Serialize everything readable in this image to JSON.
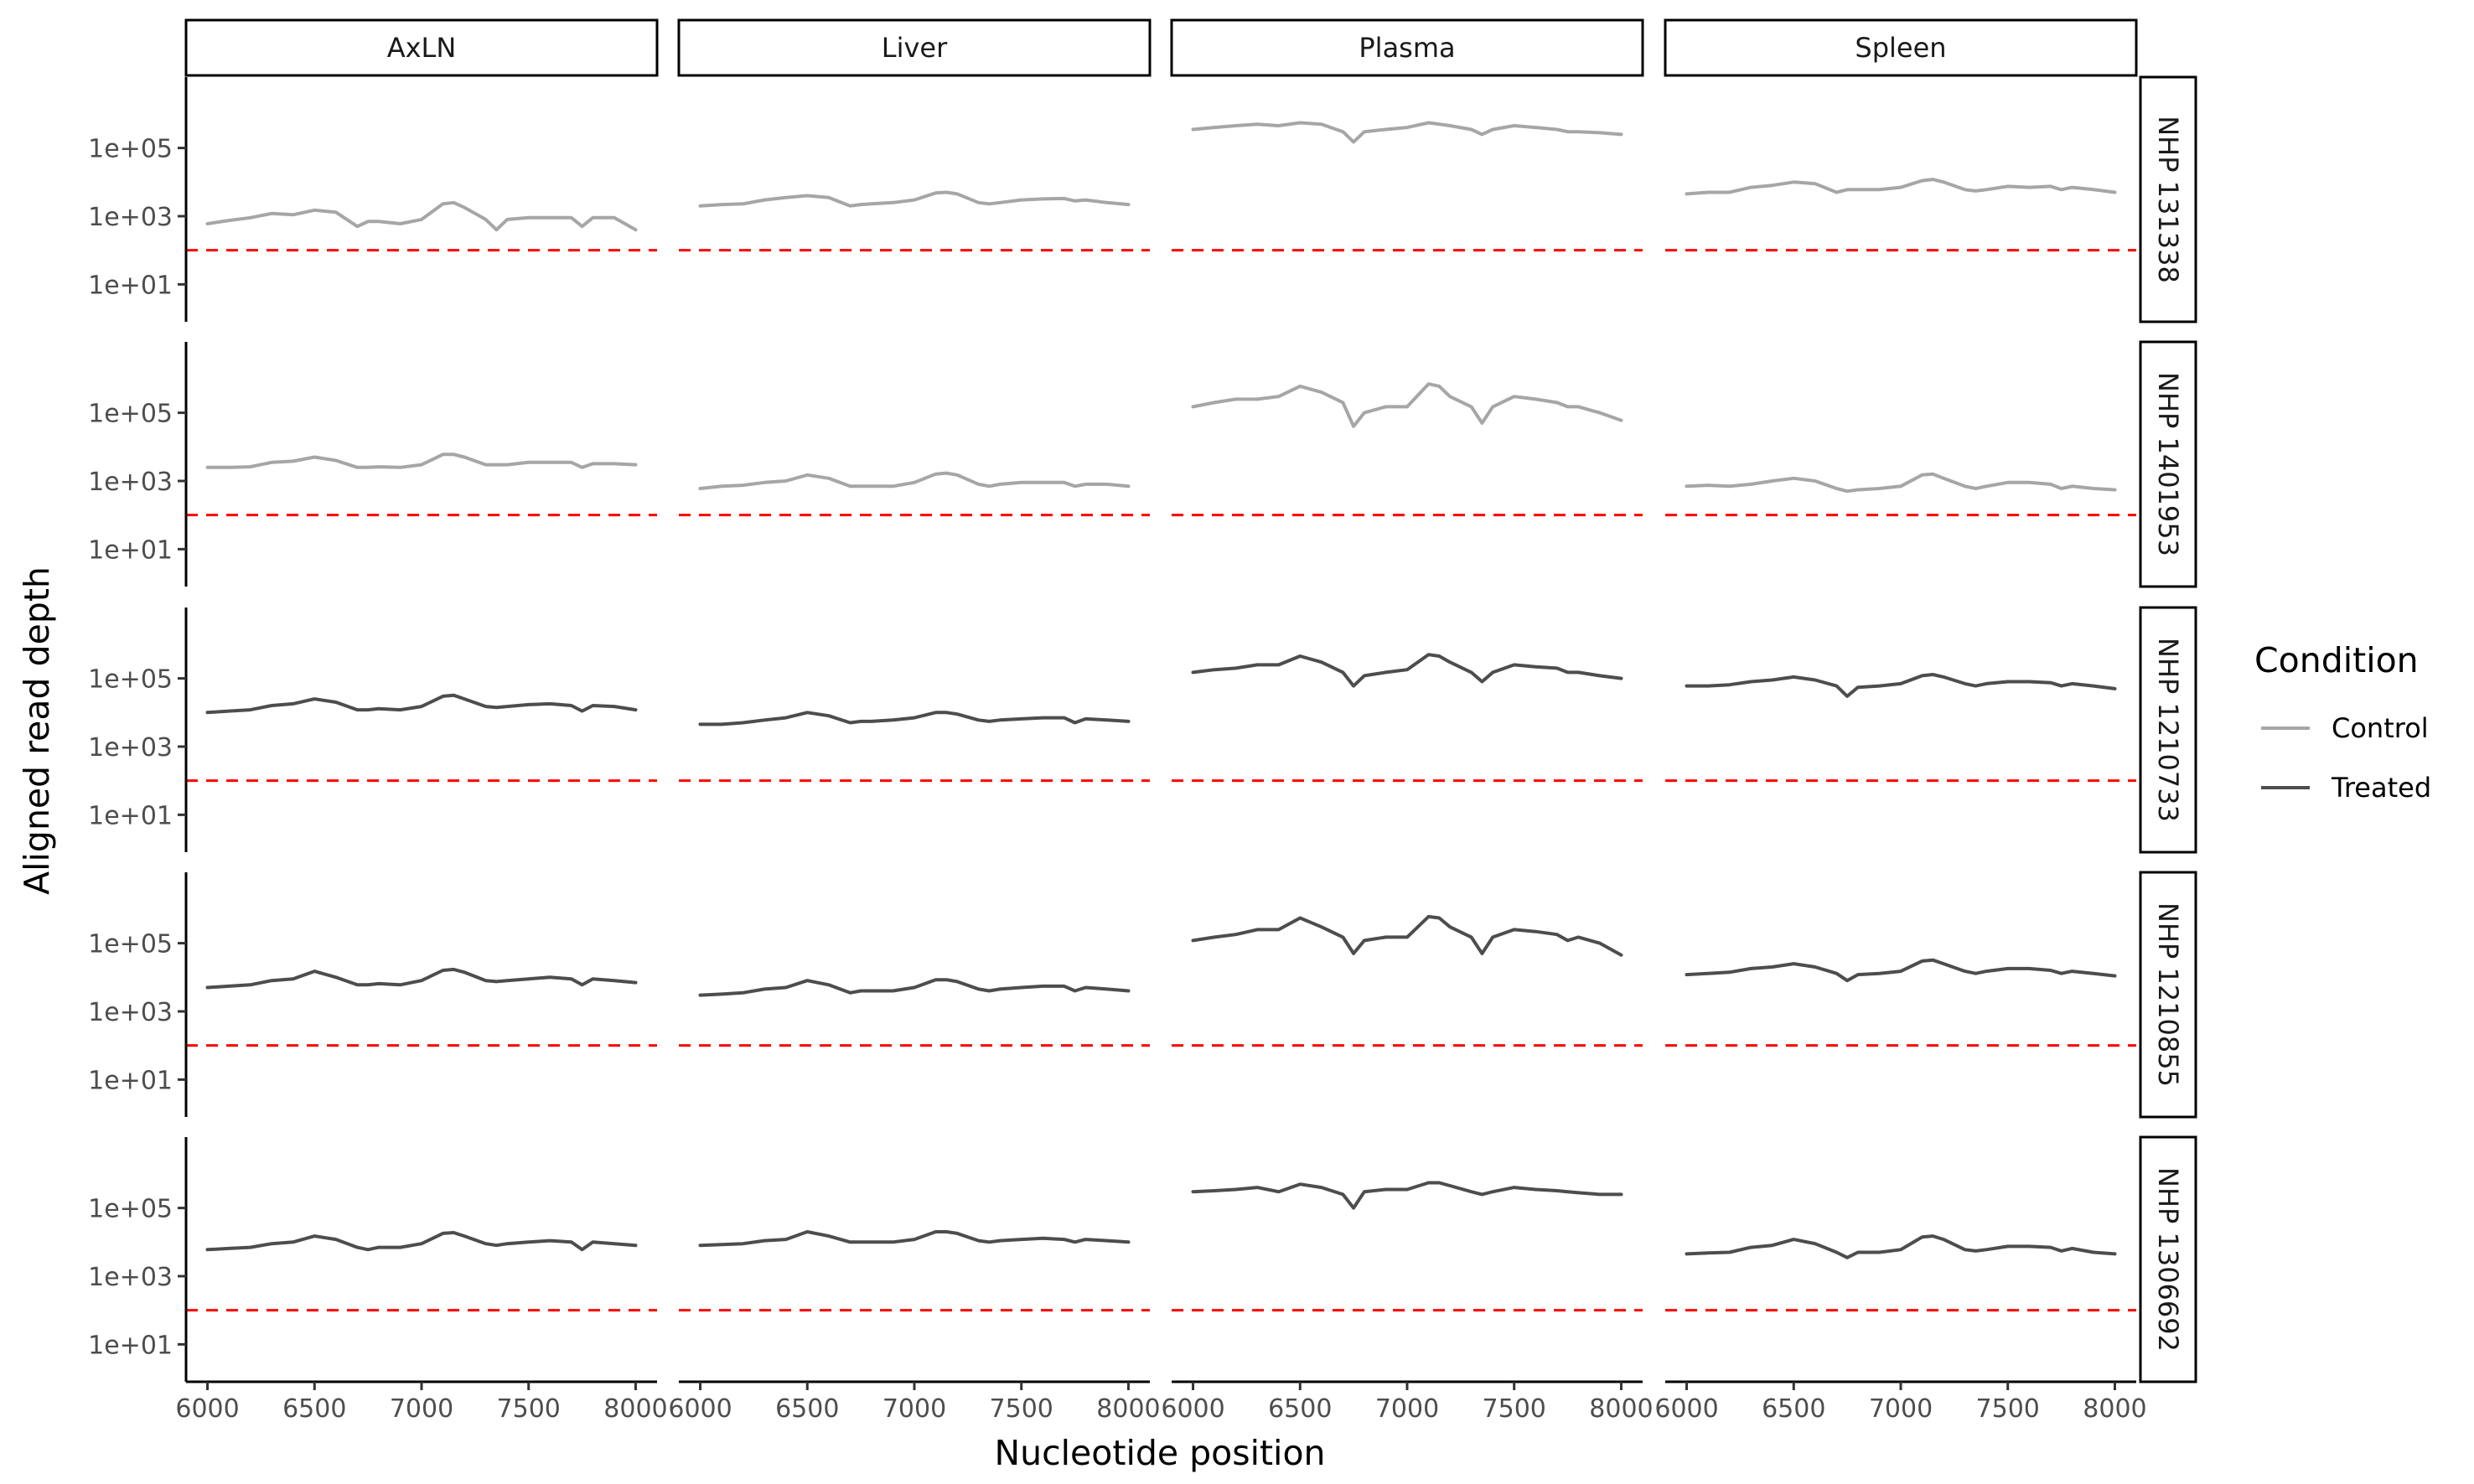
{
  "chart_data": {
    "type": "line",
    "xlabel": "Nucleotide position",
    "ylabel": "Aligned read depth",
    "y_scale": "log10",
    "xlim": [
      5900,
      8100
    ],
    "ylim": [
      0.8,
      12000000
    ],
    "x_ticks": [
      6000,
      6500,
      7000,
      7500,
      8000
    ],
    "x_tick_labels": [
      "6000",
      "6500",
      "7000",
      "7500",
      "8000"
    ],
    "y_ticks": [
      10,
      1000,
      100000
    ],
    "y_tick_labels": [
      "1e+01",
      "1e+03",
      "1e+05"
    ],
    "reference_line": {
      "y": 100,
      "style": "dashed",
      "color": "#ff0000"
    },
    "columns": [
      "AxLN",
      "Liver",
      "Plasma",
      "Spleen"
    ],
    "rows": [
      "NHP 131338",
      "NHP 1401953",
      "NHP 1210733",
      "NHP 1210855",
      "NHP 1306692"
    ],
    "row_condition": [
      "Control",
      "Control",
      "Treated",
      "Treated",
      "Treated"
    ],
    "legend": {
      "title": "Condition",
      "items": [
        {
          "name": "Control",
          "color": "#a6a6a6"
        },
        {
          "name": "Treated",
          "color": "#4d4d4d"
        }
      ]
    },
    "x": [
      6000,
      6100,
      6200,
      6300,
      6400,
      6500,
      6600,
      6700,
      6750,
      6800,
      6900,
      7000,
      7100,
      7150,
      7200,
      7300,
      7350,
      7400,
      7500,
      7600,
      7700,
      7750,
      7800,
      7900,
      8000
    ],
    "panels": [
      {
        "row": "NHP 131338",
        "col": "AxLN",
        "values": [
          600,
          750,
          900,
          1200,
          1100,
          1500,
          1300,
          500,
          700,
          700,
          600,
          800,
          2300,
          2500,
          1800,
          800,
          400,
          800,
          900,
          900,
          900,
          500,
          900,
          900,
          400
        ]
      },
      {
        "row": "NHP 131338",
        "col": "Liver",
        "values": [
          2000,
          2200,
          2300,
          3000,
          3500,
          4000,
          3500,
          2000,
          2200,
          2300,
          2500,
          3000,
          4800,
          5000,
          4500,
          2500,
          2300,
          2500,
          3000,
          3200,
          3300,
          2800,
          3000,
          2500,
          2200
        ]
      },
      {
        "row": "NHP 131338",
        "col": "Plasma",
        "values": [
          350000,
          400000,
          450000,
          500000,
          450000,
          550000,
          500000,
          300000,
          150000,
          300000,
          350000,
          400000,
          550000,
          500000,
          450000,
          350000,
          250000,
          350000,
          450000,
          400000,
          350000,
          300000,
          300000,
          280000,
          250000
        ]
      },
      {
        "row": "NHP 131338",
        "col": "Spleen",
        "values": [
          4500,
          5000,
          5000,
          7000,
          8000,
          10000,
          9000,
          5000,
          6000,
          6000,
          6000,
          7000,
          11000,
          12000,
          10000,
          6000,
          5500,
          6000,
          7500,
          7000,
          7500,
          6000,
          7000,
          6000,
          5000
        ]
      },
      {
        "row": "NHP 1401953",
        "col": "AxLN",
        "values": [
          2500,
          2500,
          2600,
          3500,
          3800,
          5000,
          4000,
          2500,
          2500,
          2600,
          2500,
          3000,
          6000,
          6000,
          5000,
          3000,
          3000,
          3000,
          3500,
          3500,
          3500,
          2500,
          3200,
          3200,
          3000
        ]
      },
      {
        "row": "NHP 1401953",
        "col": "Liver",
        "values": [
          600,
          700,
          750,
          900,
          1000,
          1500,
          1200,
          700,
          700,
          700,
          700,
          900,
          1600,
          1700,
          1500,
          800,
          700,
          800,
          900,
          900,
          900,
          700,
          800,
          800,
          700
        ]
      },
      {
        "row": "NHP 1401953",
        "col": "Plasma",
        "values": [
          150000,
          200000,
          250000,
          250000,
          300000,
          600000,
          400000,
          200000,
          40000,
          100000,
          150000,
          150000,
          700000,
          600000,
          300000,
          150000,
          50000,
          150000,
          300000,
          250000,
          200000,
          150000,
          150000,
          100000,
          60000
        ]
      },
      {
        "row": "NHP 1401953",
        "col": "Spleen",
        "values": [
          700,
          750,
          700,
          800,
          1000,
          1200,
          1000,
          600,
          500,
          550,
          600,
          700,
          1500,
          1600,
          1200,
          700,
          600,
          700,
          900,
          900,
          800,
          600,
          700,
          600,
          550
        ]
      },
      {
        "row": "NHP 1210733",
        "col": "AxLN",
        "values": [
          10000,
          11000,
          12000,
          16000,
          18000,
          25000,
          20000,
          12000,
          12000,
          13000,
          12000,
          15000,
          30000,
          32000,
          25000,
          15000,
          14000,
          15000,
          17000,
          18000,
          16000,
          11000,
          16000,
          15000,
          12000
        ]
      },
      {
        "row": "NHP 1210733",
        "col": "Liver",
        "values": [
          4500,
          4500,
          5000,
          6000,
          7000,
          10000,
          8000,
          5000,
          5500,
          5500,
          6000,
          7000,
          10000,
          10000,
          9000,
          6000,
          5500,
          6000,
          6500,
          7000,
          7000,
          5000,
          6500,
          6000,
          5500
        ]
      },
      {
        "row": "NHP 1210733",
        "col": "Plasma",
        "values": [
          150000,
          180000,
          200000,
          250000,
          250000,
          450000,
          300000,
          150000,
          60000,
          120000,
          150000,
          180000,
          500000,
          450000,
          300000,
          150000,
          80000,
          150000,
          250000,
          220000,
          200000,
          150000,
          150000,
          120000,
          100000
        ]
      },
      {
        "row": "NHP 1210733",
        "col": "Spleen",
        "values": [
          60000,
          60000,
          65000,
          80000,
          90000,
          110000,
          90000,
          60000,
          30000,
          55000,
          60000,
          70000,
          120000,
          130000,
          110000,
          70000,
          60000,
          70000,
          80000,
          80000,
          75000,
          60000,
          70000,
          60000,
          50000
        ]
      },
      {
        "row": "NHP 1210855",
        "col": "AxLN",
        "values": [
          5000,
          5500,
          6000,
          8000,
          9000,
          15000,
          10000,
          6000,
          6000,
          6500,
          6000,
          8000,
          16000,
          17000,
          14000,
          8000,
          7500,
          8000,
          9000,
          10000,
          9000,
          6000,
          9000,
          8000,
          7000
        ]
      },
      {
        "row": "NHP 1210855",
        "col": "Liver",
        "values": [
          3000,
          3200,
          3500,
          4500,
          5000,
          8000,
          6000,
          3500,
          4000,
          4000,
          4000,
          5000,
          8500,
          8500,
          7500,
          4500,
          4000,
          4500,
          5000,
          5500,
          5500,
          4000,
          5000,
          4500,
          4000
        ]
      },
      {
        "row": "NHP 1210855",
        "col": "Plasma",
        "values": [
          120000,
          150000,
          180000,
          250000,
          250000,
          550000,
          300000,
          150000,
          50000,
          120000,
          150000,
          150000,
          600000,
          550000,
          300000,
          150000,
          50000,
          150000,
          250000,
          220000,
          180000,
          120000,
          150000,
          100000,
          45000
        ]
      },
      {
        "row": "NHP 1210855",
        "col": "Spleen",
        "values": [
          12000,
          13000,
          14000,
          18000,
          20000,
          25000,
          20000,
          13000,
          8000,
          12000,
          13000,
          15000,
          30000,
          32000,
          25000,
          15000,
          13000,
          15000,
          18000,
          18000,
          16000,
          13000,
          15000,
          13000,
          11000
        ]
      },
      {
        "row": "NHP 1306692",
        "col": "AxLN",
        "values": [
          6000,
          6500,
          7000,
          9000,
          10000,
          15000,
          12000,
          7000,
          6000,
          7000,
          7000,
          9000,
          18000,
          19000,
          15000,
          9000,
          8000,
          9000,
          10000,
          11000,
          10000,
          6000,
          10000,
          9000,
          8000
        ]
      },
      {
        "row": "NHP 1306692",
        "col": "Liver",
        "values": [
          8000,
          8500,
          9000,
          11000,
          12000,
          20000,
          15000,
          10000,
          10000,
          10000,
          10000,
          12000,
          20000,
          20000,
          18000,
          11000,
          10000,
          11000,
          12000,
          13000,
          12000,
          10000,
          12000,
          11000,
          10000
        ]
      },
      {
        "row": "NHP 1306692",
        "col": "Plasma",
        "values": [
          300000,
          320000,
          350000,
          400000,
          300000,
          500000,
          400000,
          250000,
          100000,
          300000,
          350000,
          350000,
          550000,
          550000,
          450000,
          300000,
          250000,
          300000,
          400000,
          350000,
          320000,
          300000,
          280000,
          250000,
          250000
        ]
      },
      {
        "row": "NHP 1306692",
        "col": "Spleen",
        "values": [
          4500,
          4800,
          5000,
          7000,
          8000,
          12000,
          9000,
          5000,
          3500,
          5000,
          5000,
          6000,
          14000,
          15000,
          12000,
          6000,
          5500,
          6000,
          7500,
          7500,
          7000,
          5500,
          6500,
          5000,
          4500
        ]
      }
    ]
  }
}
